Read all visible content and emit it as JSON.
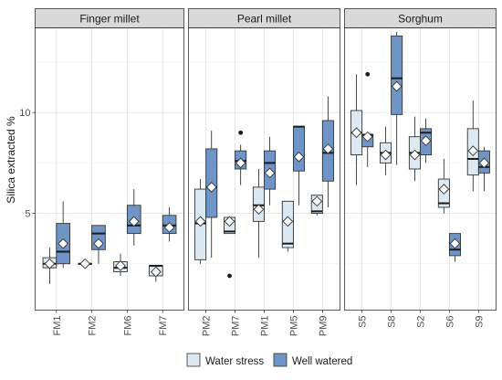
{
  "chart_data": {
    "type": "boxplot",
    "title": "",
    "ylabel": "Silica extracted %",
    "xlabel": "",
    "ylim": [
      0.2,
      14.2
    ],
    "yticks": [
      5,
      10
    ],
    "grid": true,
    "legend_position": "bottom",
    "legend": [
      {
        "name": "Water stress",
        "color": "#dce8f2"
      },
      {
        "name": "Well watered",
        "color": "#6f95c6"
      }
    ],
    "facets": [
      {
        "name": "Finger millet",
        "categories": [
          "FM1",
          "FM2",
          "FM6",
          "FM7"
        ],
        "series": [
          {
            "name": "Water stress",
            "boxes": [
              {
                "min": 1.5,
                "q1": 2.3,
                "median": 2.5,
                "q3": 2.8,
                "max": 3.3,
                "mean": 2.5,
                "outliers": []
              },
              {
                "min": 2.5,
                "q1": 2.5,
                "median": 2.5,
                "q3": 2.5,
                "max": 2.5,
                "mean": 2.5,
                "outliers": []
              },
              {
                "min": 1.9,
                "q1": 2.1,
                "median": 2.3,
                "q3": 2.6,
                "max": 3.0,
                "mean": 2.4,
                "outliers": []
              },
              {
                "min": 1.6,
                "q1": 1.9,
                "median": 2.4,
                "q3": 2.4,
                "max": 2.4,
                "mean": 2.1,
                "outliers": []
              }
            ]
          },
          {
            "name": "Well watered",
            "boxes": [
              {
                "min": 2.3,
                "q1": 2.5,
                "median": 3.1,
                "q3": 4.5,
                "max": 5.6,
                "mean": 3.5,
                "outliers": []
              },
              {
                "min": 2.5,
                "q1": 3.2,
                "median": 4.0,
                "q3": 4.4,
                "max": 4.4,
                "mean": 3.5,
                "outliers": []
              },
              {
                "min": 3.4,
                "q1": 4.0,
                "median": 4.4,
                "q3": 5.4,
                "max": 6.2,
                "mean": 4.6,
                "outliers": []
              },
              {
                "min": 3.6,
                "q1": 4.0,
                "median": 4.4,
                "q3": 4.9,
                "max": 5.3,
                "mean": 4.3,
                "outliers": []
              }
            ]
          }
        ]
      },
      {
        "name": "Pearl millet",
        "categories": [
          "PM2",
          "PM7",
          "PM1",
          "PM5",
          "PM9"
        ],
        "series": [
          {
            "name": "Water stress",
            "boxes": [
              {
                "min": 2.5,
                "q1": 2.7,
                "median": 4.5,
                "q3": 6.2,
                "max": 6.7,
                "mean": 4.6,
                "outliers": []
              },
              {
                "min": 4.0,
                "q1": 4.0,
                "median": 4.1,
                "q3": 4.8,
                "max": 4.8,
                "mean": 4.6,
                "outliers": [
                  1.9
                ]
              },
              {
                "min": 2.8,
                "q1": 4.6,
                "median": 5.4,
                "q3": 6.3,
                "max": 7.2,
                "mean": 5.2,
                "outliers": []
              },
              {
                "min": 3.1,
                "q1": 3.3,
                "median": 3.5,
                "q3": 5.6,
                "max": 5.6,
                "mean": 4.6,
                "outliers": []
              },
              {
                "min": 4.9,
                "q1": 5.0,
                "median": 5.1,
                "q3": 5.9,
                "max": 5.9,
                "mean": 5.6,
                "outliers": []
              }
            ]
          },
          {
            "name": "Well watered",
            "boxes": [
              {
                "min": 2.8,
                "q1": 4.8,
                "median": 6.3,
                "q3": 8.2,
                "max": 9.1,
                "mean": 6.3,
                "outliers": []
              },
              {
                "min": 6.4,
                "q1": 7.2,
                "median": 7.6,
                "q3": 8.1,
                "max": 8.4,
                "mean": 7.5,
                "outliers": [
                  9.0
                ]
              },
              {
                "min": 5.4,
                "q1": 6.2,
                "median": 7.5,
                "q3": 8.1,
                "max": 8.8,
                "mean": 7.0,
                "outliers": []
              },
              {
                "min": 5.4,
                "q1": 7.1,
                "median": 9.3,
                "q3": 9.3,
                "max": 9.3,
                "mean": 7.8,
                "outliers": []
              },
              {
                "min": 5.3,
                "q1": 6.6,
                "median": 8.0,
                "q3": 9.6,
                "max": 10.8,
                "mean": 8.2,
                "outliers": []
              }
            ]
          }
        ]
      },
      {
        "name": "Sorghum",
        "categories": [
          "S5",
          "S8",
          "S2",
          "S6",
          "S9"
        ],
        "series": [
          {
            "name": "Water stress",
            "boxes": [
              {
                "min": 6.4,
                "q1": 7.9,
                "median": 9.0,
                "q3": 10.1,
                "max": 11.9,
                "mean": 9.0,
                "outliers": []
              },
              {
                "min": 6.9,
                "q1": 7.5,
                "median": 8.0,
                "q3": 8.5,
                "max": 9.3,
                "mean": 7.9,
                "outliers": []
              },
              {
                "min": 6.6,
                "q1": 7.2,
                "median": 8.0,
                "q3": 8.8,
                "max": 9.8,
                "mean": 7.9,
                "outliers": []
              },
              {
                "min": 5.0,
                "q1": 5.3,
                "median": 5.5,
                "q3": 6.7,
                "max": 7.7,
                "mean": 6.2,
                "outliers": []
              },
              {
                "min": 6.1,
                "q1": 6.9,
                "median": 7.7,
                "q3": 9.2,
                "max": 10.6,
                "mean": 8.1,
                "outliers": []
              }
            ]
          },
          {
            "name": "Well watered",
            "boxes": [
              {
                "min": 7.3,
                "q1": 8.3,
                "median": 8.9,
                "q3": 8.9,
                "max": 9.0,
                "mean": 8.8,
                "outliers": [
                  11.9
                ]
              },
              {
                "min": 7.4,
                "q1": 9.9,
                "median": 11.7,
                "q3": 13.8,
                "max": 14.0,
                "mean": 11.3,
                "outliers": []
              },
              {
                "min": 7.5,
                "q1": 7.9,
                "median": 9.0,
                "q3": 9.2,
                "max": 9.7,
                "mean": 8.6,
                "outliers": []
              },
              {
                "min": 2.6,
                "q1": 2.9,
                "median": 3.2,
                "q3": 4.0,
                "max": 4.0,
                "mean": 3.5,
                "outliers": []
              },
              {
                "min": 6.1,
                "q1": 7.0,
                "median": 7.3,
                "q3": 8.1,
                "max": 8.3,
                "mean": 7.5,
                "outliers": []
              }
            ]
          }
        ]
      }
    ]
  }
}
